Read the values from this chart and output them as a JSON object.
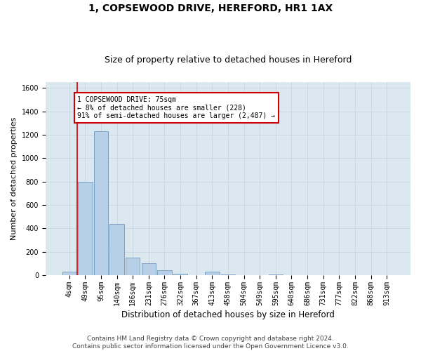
{
  "title1": "1, COPSEWOOD DRIVE, HEREFORD, HR1 1AX",
  "title2": "Size of property relative to detached houses in Hereford",
  "xlabel": "Distribution of detached houses by size in Hereford",
  "ylabel": "Number of detached properties",
  "categories": [
    "4sqm",
    "49sqm",
    "95sqm",
    "140sqm",
    "186sqm",
    "231sqm",
    "276sqm",
    "322sqm",
    "367sqm",
    "413sqm",
    "458sqm",
    "504sqm",
    "549sqm",
    "595sqm",
    "640sqm",
    "686sqm",
    "731sqm",
    "777sqm",
    "822sqm",
    "868sqm",
    "913sqm"
  ],
  "values": [
    30,
    800,
    1230,
    440,
    150,
    100,
    40,
    15,
    0,
    30,
    5,
    0,
    0,
    5,
    0,
    0,
    0,
    0,
    0,
    0,
    0
  ],
  "bar_color": "#b8cfe8",
  "bar_edge_color": "#7099bb",
  "grid_color": "#c8d4e4",
  "background_color": "#dce8f0",
  "annotation_line1": "1 COPSEWOOD DRIVE: 75sqm",
  "annotation_line2": "← 8% of detached houses are smaller (228)",
  "annotation_line3": "91% of semi-detached houses are larger (2,487) →",
  "annotation_box_color": "#cc0000",
  "vline_x": 0.5,
  "vline_color": "#cc0000",
  "ylim": [
    0,
    1650
  ],
  "yticks": [
    0,
    200,
    400,
    600,
    800,
    1000,
    1200,
    1400,
    1600
  ],
  "footer": "Contains HM Land Registry data © Crown copyright and database right 2024.\nContains public sector information licensed under the Open Government Licence v3.0.",
  "title1_fontsize": 10,
  "title2_fontsize": 9,
  "xlabel_fontsize": 8.5,
  "ylabel_fontsize": 8,
  "tick_fontsize": 7,
  "footer_fontsize": 6.5
}
